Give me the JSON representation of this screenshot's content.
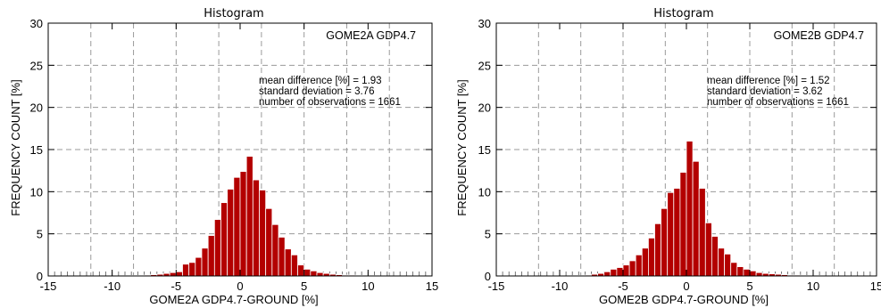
{
  "colors": {
    "bar": "#b30000",
    "bar_edge": "#ffffff",
    "grid": "#9a9a9a",
    "frame": "#000000"
  },
  "chart_data": [
    {
      "type": "bar",
      "title": "Histogram",
      "label": "GOME2A GDP4.7",
      "xlabel": "GOME2A GDP4.7-GROUND [%]",
      "ylabel": "FREQUENCY COUNT [%]",
      "xlim": [
        -15,
        15
      ],
      "ylim": [
        0,
        30
      ],
      "xticks": [
        "-15",
        "-10",
        "-5",
        "0",
        "5",
        "10",
        "15"
      ],
      "yticks": [
        "0",
        "5",
        "10",
        "15",
        "20",
        "25",
        "30"
      ],
      "grid": true,
      "gridlines_x": [
        -11.667,
        -8.333,
        -5,
        -1.667,
        1.667,
        5,
        8.333,
        11.667
      ],
      "gridlines_y": [
        5,
        10,
        15,
        20,
        25
      ],
      "bin_width": 0.5,
      "bin_centers": [
        -8.75,
        -8.25,
        -7.75,
        -7.25,
        -6.75,
        -6.25,
        -5.75,
        -5.25,
        -4.75,
        -4.25,
        -3.75,
        -3.25,
        -2.75,
        -2.25,
        -1.75,
        -1.25,
        -0.75,
        -0.25,
        0.25,
        0.75,
        1.25,
        1.75,
        2.25,
        2.75,
        3.25,
        3.75,
        4.25,
        4.75,
        5.25,
        5.75,
        6.25,
        6.75,
        7.25,
        7.75,
        8.25,
        8.75,
        9.25,
        9.75,
        10.25
      ],
      "values": [
        0.05,
        0.05,
        0.05,
        0.1,
        0.15,
        0.2,
        0.3,
        0.4,
        0.5,
        1.4,
        1.6,
        2.2,
        3.3,
        4.8,
        6.7,
        8.7,
        10.3,
        11.7,
        12.4,
        14.2,
        11.4,
        10.2,
        8.0,
        6.1,
        4.6,
        3.2,
        2.5,
        1.3,
        0.8,
        0.6,
        0.4,
        0.3,
        0.2,
        0.15,
        0.1,
        0.1,
        0.05,
        0.05,
        0.05
      ],
      "annotations": [
        "mean difference [%] =   1.93",
        "standard deviation =  3.76",
        "number of observations =   1661"
      ]
    },
    {
      "type": "bar",
      "title": "Histogram",
      "label": "GOME2B GDP4.7",
      "xlabel": "GOME2B GDP4.7-GROUND [%]",
      "ylabel": "FREQUENCY COUNT [%]",
      "xlim": [
        -15,
        15
      ],
      "ylim": [
        0,
        30
      ],
      "xticks": [
        "-15",
        "-10",
        "-5",
        "0",
        "5",
        "10",
        "15"
      ],
      "yticks": [
        "0",
        "5",
        "10",
        "15",
        "20",
        "25",
        "30"
      ],
      "grid": true,
      "gridlines_x": [
        -11.667,
        -8.333,
        -5,
        -1.667,
        1.667,
        5,
        8.333,
        11.667
      ],
      "gridlines_y": [
        5,
        10,
        15,
        20,
        25
      ],
      "bin_width": 0.5,
      "bin_centers": [
        -8.75,
        -8.25,
        -7.75,
        -7.25,
        -6.75,
        -6.25,
        -5.75,
        -5.25,
        -4.75,
        -4.25,
        -3.75,
        -3.25,
        -2.75,
        -2.25,
        -1.75,
        -1.25,
        -0.75,
        -0.25,
        0.25,
        0.75,
        1.25,
        1.75,
        2.25,
        2.75,
        3.25,
        3.75,
        4.25,
        4.75,
        5.25,
        5.75,
        6.25,
        6.75,
        7.25,
        7.75,
        8.25,
        8.75,
        9.25,
        9.75,
        10.25
      ],
      "values": [
        0.05,
        0.05,
        0.1,
        0.2,
        0.3,
        0.5,
        0.8,
        1.0,
        1.3,
        1.8,
        2.5,
        3.3,
        4.5,
        6.2,
        8.0,
        9.9,
        10.4,
        12.3,
        16.0,
        13.6,
        10.4,
        6.3,
        4.7,
        3.3,
        2.6,
        1.6,
        1.1,
        0.8,
        0.6,
        0.4,
        0.3,
        0.25,
        0.2,
        0.15,
        0.1,
        0.1,
        0.05,
        0.05,
        0.05
      ],
      "annotations": [
        "mean difference [%] =   1.52",
        "standard deviation =  3.62",
        "number of observations =   1661"
      ]
    }
  ]
}
